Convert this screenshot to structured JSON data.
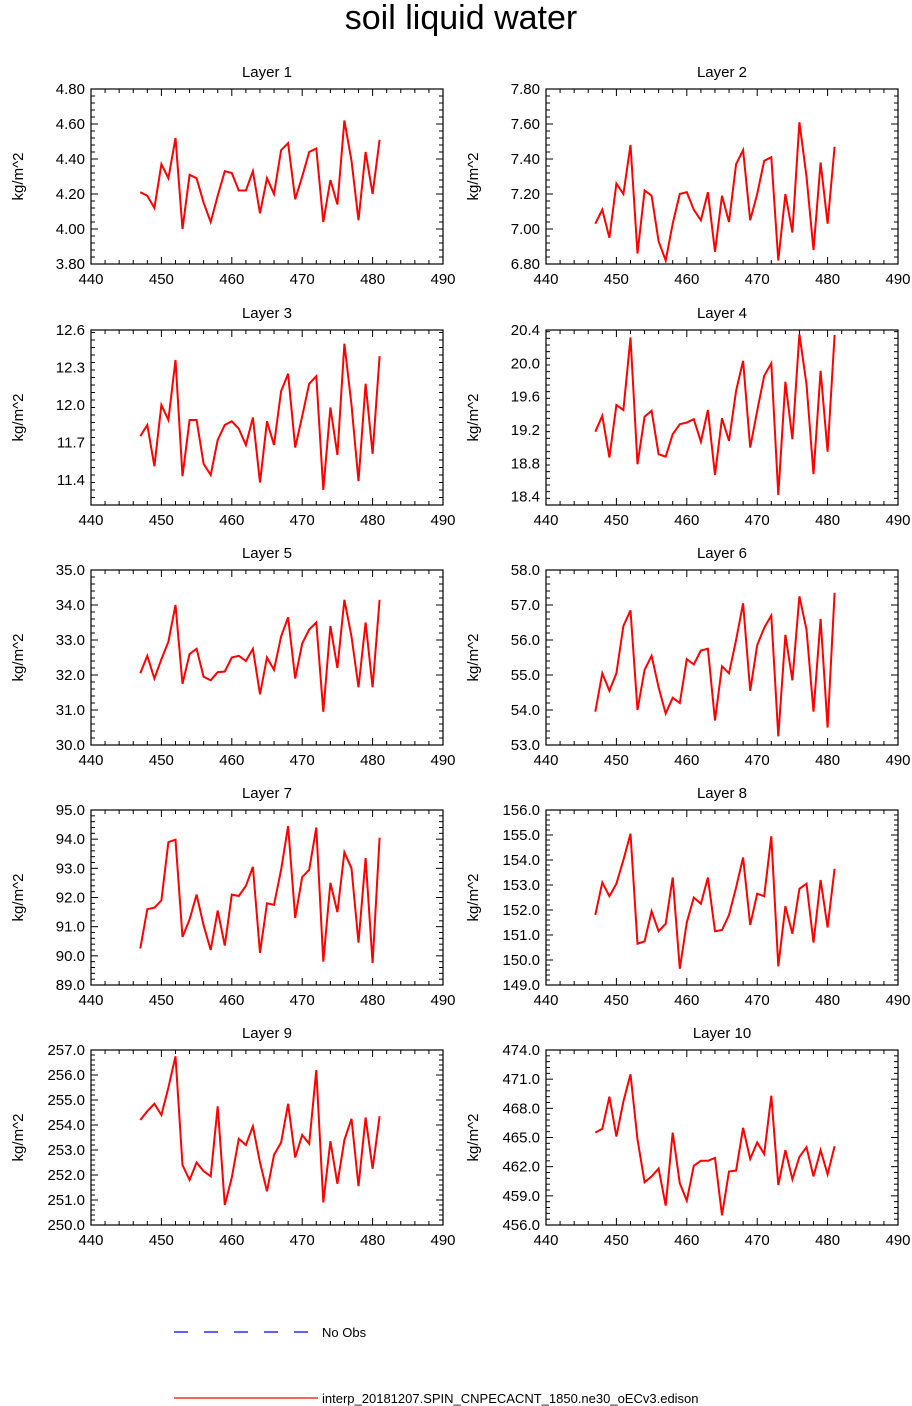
{
  "figure": {
    "title": "soil liquid water",
    "legend": [
      {
        "label": "No Obs",
        "color": "#0000ff",
        "style": "dashed"
      },
      {
        "label": "interp_20181207.SPIN_CNPECACNT_1850.ne30_oECv3.edison",
        "color": "#ff0000",
        "style": "solid"
      }
    ]
  },
  "chart_data": [
    {
      "type": "line",
      "title": "Layer 1",
      "ylabel": "kg/m^2",
      "xlabel": "",
      "xlim": [
        440,
        490
      ],
      "xticks": [
        440,
        450,
        460,
        470,
        480,
        490
      ],
      "ylim": [
        3.8,
        4.8
      ],
      "yticks": [
        "3.80",
        "4.00",
        "4.20",
        "4.40",
        "4.60",
        "4.80"
      ],
      "x_start": 447,
      "series": [
        {
          "name": "interp_20181207.SPIN_CNPECACNT_1850.ne30_oECv3.edison",
          "color": "#ff0000",
          "values": [
            4.21,
            4.19,
            4.12,
            4.37,
            4.29,
            4.52,
            4.0,
            4.31,
            4.29,
            4.15,
            4.04,
            4.19,
            4.33,
            4.32,
            4.22,
            4.22,
            4.33,
            4.09,
            4.29,
            4.2,
            4.45,
            4.49,
            4.17,
            4.3,
            4.44,
            4.46,
            4.04,
            4.28,
            4.14,
            4.62,
            4.39,
            4.05,
            4.44,
            4.2,
            4.51
          ]
        }
      ]
    },
    {
      "type": "line",
      "title": "Layer 2",
      "ylabel": "kg/m^2",
      "xlabel": "",
      "xlim": [
        440,
        490
      ],
      "xticks": [
        440,
        450,
        460,
        470,
        480,
        490
      ],
      "ylim": [
        6.8,
        7.8
      ],
      "yticks": [
        "6.80",
        "7.00",
        "7.20",
        "7.40",
        "7.60",
        "7.80"
      ],
      "x_start": 447,
      "series": [
        {
          "name": "interp_20181207.SPIN_CNPECACNT_1850.ne30_oECv3.edison",
          "color": "#ff0000",
          "values": [
            7.03,
            7.11,
            6.95,
            7.26,
            7.2,
            7.48,
            6.86,
            7.22,
            7.19,
            6.93,
            6.82,
            7.03,
            7.2,
            7.21,
            7.11,
            7.05,
            7.21,
            6.87,
            7.19,
            7.04,
            7.37,
            7.45,
            7.05,
            7.2,
            7.39,
            7.41,
            6.82,
            7.2,
            6.98,
            7.61,
            7.3,
            6.88,
            7.38,
            7.03,
            7.47
          ]
        }
      ]
    },
    {
      "type": "line",
      "title": "Layer 3",
      "ylabel": "kg/m^2",
      "xlabel": "",
      "xlim": [
        440,
        490
      ],
      "xticks": [
        440,
        450,
        460,
        470,
        480,
        490
      ],
      "ylim": [
        11.2,
        12.6
      ],
      "yticks": [
        "11.4",
        "11.7",
        "12.0",
        "12.3",
        "12.6"
      ],
      "x_start": 447,
      "series": [
        {
          "name": "interp_20181207.SPIN_CNPECACNT_1850.ne30_oECv3.edison",
          "color": "#ff0000",
          "values": [
            11.75,
            11.84,
            11.51,
            12.0,
            11.88,
            12.36,
            11.43,
            11.88,
            11.88,
            11.53,
            11.44,
            11.72,
            11.84,
            11.87,
            11.81,
            11.68,
            11.9,
            11.38,
            11.87,
            11.68,
            12.11,
            12.25,
            11.66,
            11.91,
            12.17,
            12.23,
            11.32,
            11.98,
            11.6,
            12.49,
            12.0,
            11.39,
            12.17,
            11.61,
            12.39
          ]
        }
      ]
    },
    {
      "type": "line",
      "title": "Layer 4",
      "ylabel": "kg/m^2",
      "xlabel": "",
      "xlim": [
        440,
        490
      ],
      "xticks": [
        440,
        450,
        460,
        470,
        480,
        490
      ],
      "ylim": [
        18.3,
        20.4
      ],
      "yticks": [
        "18.4",
        "18.8",
        "19.2",
        "19.6",
        "20.0",
        "20.4"
      ],
      "x_start": 447,
      "series": [
        {
          "name": "interp_20181207.SPIN_CNPECACNT_1850.ne30_oECv3.edison",
          "color": "#ff0000",
          "values": [
            19.18,
            19.37,
            18.87,
            19.5,
            19.44,
            20.31,
            18.79,
            19.36,
            19.43,
            18.91,
            18.88,
            19.15,
            19.27,
            19.29,
            19.33,
            19.06,
            19.44,
            18.66,
            19.34,
            19.07,
            19.67,
            20.03,
            18.99,
            19.43,
            19.85,
            20.0,
            18.42,
            19.78,
            19.09,
            20.35,
            19.75,
            18.67,
            19.91,
            18.94,
            20.34
          ]
        }
      ]
    },
    {
      "type": "line",
      "title": "Layer 5",
      "ylabel": "kg/m^2",
      "xlabel": "",
      "xlim": [
        440,
        490
      ],
      "xticks": [
        440,
        450,
        460,
        470,
        480,
        490
      ],
      "ylim": [
        30.0,
        35.0
      ],
      "yticks": [
        "30.0",
        "31.0",
        "32.0",
        "33.0",
        "34.0",
        "35.0"
      ],
      "x_start": 447,
      "series": [
        {
          "name": "interp_20181207.SPIN_CNPECACNT_1850.ne30_oECv3.edison",
          "color": "#ff0000",
          "values": [
            32.05,
            32.55,
            31.9,
            32.45,
            32.95,
            34.0,
            31.75,
            32.6,
            32.75,
            31.95,
            31.85,
            32.08,
            32.1,
            32.5,
            32.55,
            32.4,
            32.75,
            31.45,
            32.5,
            32.15,
            33.1,
            33.65,
            31.9,
            32.9,
            33.3,
            33.5,
            30.95,
            33.4,
            32.2,
            34.15,
            33.1,
            31.65,
            33.5,
            31.65,
            34.15
          ]
        }
      ]
    },
    {
      "type": "line",
      "title": "Layer 6",
      "ylabel": "kg/m^2",
      "xlabel": "",
      "xlim": [
        440,
        490
      ],
      "xticks": [
        440,
        450,
        460,
        470,
        480,
        490
      ],
      "ylim": [
        53.0,
        58.0
      ],
      "yticks": [
        "53.0",
        "54.0",
        "55.0",
        "56.0",
        "57.0",
        "58.0"
      ],
      "x_start": 447,
      "series": [
        {
          "name": "interp_20181207.SPIN_CNPECACNT_1850.ne30_oECv3.edison",
          "color": "#ff0000",
          "values": [
            53.95,
            55.05,
            54.55,
            55.05,
            56.4,
            56.85,
            54.0,
            55.15,
            55.55,
            54.65,
            53.9,
            54.35,
            54.2,
            55.45,
            55.3,
            55.7,
            55.75,
            53.7,
            55.25,
            55.05,
            56.0,
            57.05,
            54.55,
            55.85,
            56.35,
            56.7,
            53.25,
            56.15,
            54.85,
            57.25,
            56.3,
            53.95,
            56.6,
            53.5,
            57.35
          ]
        }
      ]
    },
    {
      "type": "line",
      "title": "Layer 7",
      "ylabel": "kg/m^2",
      "xlabel": "",
      "xlim": [
        440,
        490
      ],
      "xticks": [
        440,
        450,
        460,
        470,
        480,
        490
      ],
      "ylim": [
        89.0,
        95.0
      ],
      "yticks": [
        "89.0",
        "90.0",
        "91.0",
        "92.0",
        "93.0",
        "94.0",
        "95.0"
      ],
      "x_start": 447,
      "series": [
        {
          "name": "interp_20181207.SPIN_CNPECACNT_1850.ne30_oECv3.edison",
          "color": "#ff0000",
          "values": [
            90.25,
            91.6,
            91.65,
            91.9,
            93.9,
            93.98,
            90.65,
            91.25,
            92.1,
            91.05,
            90.2,
            91.55,
            90.35,
            92.1,
            92.05,
            92.4,
            93.05,
            90.1,
            91.8,
            91.75,
            92.95,
            94.45,
            91.3,
            92.7,
            92.95,
            94.4,
            89.8,
            92.5,
            91.5,
            93.55,
            93.0,
            90.45,
            93.35,
            89.75,
            94.05
          ]
        }
      ]
    },
    {
      "type": "line",
      "title": "Layer 8",
      "ylabel": "kg/m^2",
      "xlabel": "",
      "xlim": [
        440,
        490
      ],
      "xticks": [
        440,
        450,
        460,
        470,
        480,
        490
      ],
      "ylim": [
        149.0,
        156.0
      ],
      "yticks": [
        "149.0",
        "150.0",
        "151.0",
        "152.0",
        "153.0",
        "154.0",
        "155.0",
        "156.0"
      ],
      "x_start": 447,
      "series": [
        {
          "name": "interp_20181207.SPIN_CNPECACNT_1850.ne30_oECv3.edison",
          "color": "#ff0000",
          "values": [
            151.8,
            153.1,
            152.55,
            153.05,
            154.0,
            155.05,
            150.65,
            150.75,
            151.95,
            151.15,
            151.45,
            153.3,
            149.65,
            151.5,
            152.5,
            152.25,
            153.3,
            151.15,
            151.2,
            151.8,
            152.9,
            154.1,
            151.4,
            152.65,
            152.55,
            154.95,
            149.75,
            152.15,
            151.05,
            152.85,
            153.05,
            150.7,
            153.2,
            151.3,
            153.65
          ]
        }
      ]
    },
    {
      "type": "line",
      "title": "Layer 9",
      "ylabel": "kg/m^2",
      "xlabel": "",
      "xlim": [
        440,
        490
      ],
      "xticks": [
        440,
        450,
        460,
        470,
        480,
        490
      ],
      "ylim": [
        250.0,
        257.0
      ],
      "yticks": [
        "250.0",
        "251.0",
        "252.0",
        "253.0",
        "254.0",
        "255.0",
        "256.0",
        "257.0"
      ],
      "x_start": 447,
      "series": [
        {
          "name": "interp_20181207.SPIN_CNPECACNT_1850.ne30_oECv3.edison",
          "color": "#ff0000",
          "values": [
            254.2,
            254.55,
            254.85,
            254.4,
            255.5,
            256.75,
            252.4,
            251.8,
            252.5,
            252.15,
            251.95,
            254.75,
            250.8,
            251.9,
            253.45,
            253.2,
            253.95,
            252.5,
            251.35,
            252.8,
            253.3,
            254.85,
            252.7,
            253.6,
            253.25,
            256.2,
            250.9,
            253.35,
            251.65,
            253.4,
            254.25,
            251.55,
            254.3,
            252.25,
            254.35
          ]
        }
      ]
    },
    {
      "type": "line",
      "title": "Layer 10",
      "ylabel": "kg/m^2",
      "xlabel": "",
      "xlim": [
        440,
        490
      ],
      "xticks": [
        440,
        450,
        460,
        470,
        480,
        490
      ],
      "ylim": [
        456.0,
        474.0
      ],
      "yticks": [
        "456.0",
        "459.0",
        "462.0",
        "465.0",
        "468.0",
        "471.0",
        "474.0"
      ],
      "x_start": 447,
      "series": [
        {
          "name": "interp_20181207.SPIN_CNPECACNT_1850.ne30_oECv3.edison",
          "color": "#ff0000",
          "values": [
            465.5,
            465.9,
            469.2,
            465.1,
            468.7,
            471.5,
            464.8,
            460.4,
            461.0,
            461.8,
            458.0,
            465.5,
            460.3,
            458.5,
            462.1,
            462.6,
            462.6,
            462.9,
            457.0,
            461.5,
            461.6,
            466.0,
            462.8,
            464.5,
            463.3,
            469.3,
            460.1,
            463.7,
            460.7,
            463.0,
            464.0,
            461.0,
            463.7,
            461.2,
            464.1
          ]
        }
      ]
    }
  ]
}
